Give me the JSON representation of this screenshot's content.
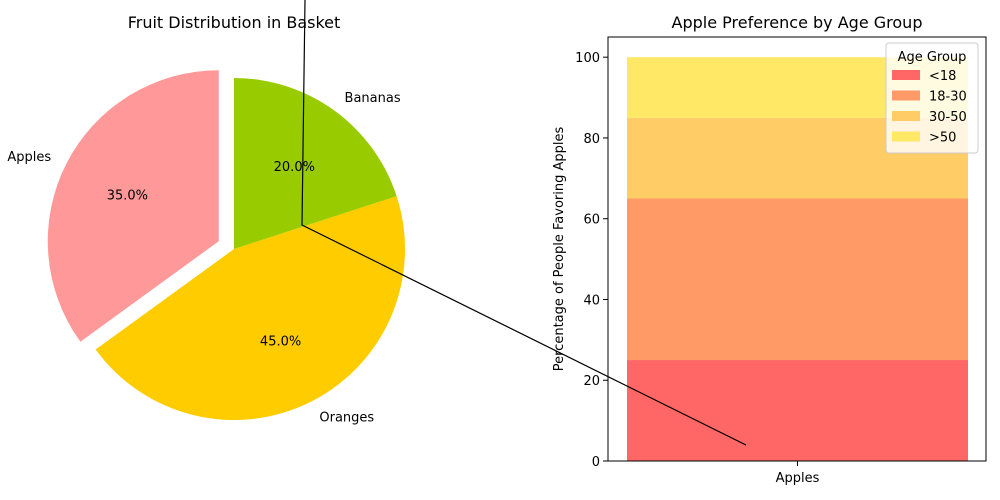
{
  "chart_data": [
    {
      "type": "pie",
      "title": "Fruit Distribution in Basket",
      "categories": [
        "Apples",
        "Oranges",
        "Bananas"
      ],
      "values": [
        35.0,
        45.0,
        20.0
      ],
      "value_labels": [
        "35.0%",
        "45.0%",
        "20.0%"
      ],
      "colors": [
        "#ff9999",
        "#ffcc00",
        "#99cc00"
      ],
      "exploded": [
        "Apples"
      ]
    },
    {
      "type": "bar",
      "stacked": true,
      "title": "Apple Preference by Age Group",
      "xlabel": "",
      "ylabel": "Percentage of People Favoring Apples",
      "categories": [
        "Apples"
      ],
      "ylim": [
        0,
        105
      ],
      "yticks": [
        "0",
        "20",
        "40",
        "60",
        "80",
        "100"
      ],
      "series": [
        {
          "name": "<18",
          "values": [
            25
          ],
          "color": "#ff6666"
        },
        {
          "name": "18-30",
          "values": [
            40
          ],
          "color": "#ff9966"
        },
        {
          "name": "30-50",
          "values": [
            20
          ],
          "color": "#ffcc66"
        },
        {
          "name": ">50",
          "values": [
            15
          ],
          "color": "#ffe866"
        }
      ],
      "legend": {
        "title": "Age Group",
        "placement": "top-right"
      },
      "grid": false
    }
  ]
}
